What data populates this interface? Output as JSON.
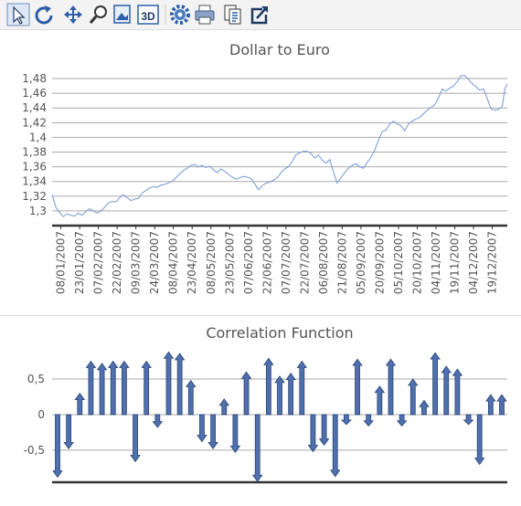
{
  "toolbar": {
    "tools": [
      {
        "name": "pointer-icon",
        "selected": true
      },
      {
        "name": "rotate-icon"
      },
      {
        "name": "move-icon"
      },
      {
        "name": "zoom-icon"
      },
      {
        "name": "image-editor-icon"
      },
      {
        "name": "3d-icon",
        "label": "3D"
      },
      {
        "name": "settings-gear-icon"
      },
      {
        "name": "print-icon"
      },
      {
        "name": "copy-icon"
      },
      {
        "name": "export-icon"
      }
    ]
  },
  "chart_data": [
    {
      "type": "line",
      "title": "Dollar to Euro",
      "ylim": [
        1.28,
        1.49
      ],
      "yticks": [
        "1,3",
        "1,32",
        "1,34",
        "1,36",
        "1,38",
        "1,4",
        "1,42",
        "1,44",
        "1,46",
        "1,48"
      ],
      "ytick_values": [
        1.3,
        1.32,
        1.34,
        1.36,
        1.38,
        1.4,
        1.42,
        1.44,
        1.46,
        1.48
      ],
      "xlim": [
        "2007-01-01",
        "2007-12-31"
      ],
      "xticks": [
        "08/01/2007",
        "23/01/2007",
        "07/02/2007",
        "22/02/2007",
        "09/03/2007",
        "24/03/2007",
        "08/04/2007",
        "23/04/2007",
        "08/05/2007",
        "23/05/2007",
        "07/06/2007",
        "22/06/2007",
        "07/07/2007",
        "22/07/2007",
        "06/08/2007",
        "21/08/2007",
        "05/09/2007",
        "20/09/2007",
        "05/10/2007",
        "20/10/2007",
        "04/11/2007",
        "19/11/2007",
        "04/12/2007",
        "19/12/2007"
      ],
      "xtick_dates": [
        "2007-01-08",
        "2007-01-23",
        "2007-02-07",
        "2007-02-22",
        "2007-03-09",
        "2007-03-24",
        "2007-04-08",
        "2007-04-23",
        "2007-05-08",
        "2007-05-23",
        "2007-06-07",
        "2007-06-22",
        "2007-07-07",
        "2007-07-22",
        "2007-08-06",
        "2007-08-21",
        "2007-09-05",
        "2007-09-20",
        "2007-10-05",
        "2007-10-20",
        "2007-11-04",
        "2007-11-19",
        "2007-12-04",
        "2007-12-19"
      ],
      "grid": true,
      "color": "#7f9fd6",
      "series": [
        {
          "points": [
            [
              "2007-01-01",
              1.322
            ],
            [
              "2007-01-04",
              1.305
            ],
            [
              "2007-01-07",
              1.298
            ],
            [
              "2007-01-10",
              1.292
            ],
            [
              "2007-01-13",
              1.296
            ],
            [
              "2007-01-16",
              1.294
            ],
            [
              "2007-01-19",
              1.293
            ],
            [
              "2007-01-22",
              1.297
            ],
            [
              "2007-01-25",
              1.294
            ],
            [
              "2007-01-28",
              1.299
            ],
            [
              "2007-01-31",
              1.303
            ],
            [
              "2007-02-03",
              1.3
            ],
            [
              "2007-02-06",
              1.297
            ],
            [
              "2007-02-09",
              1.3
            ],
            [
              "2007-02-12",
              1.305
            ],
            [
              "2007-02-15",
              1.311
            ],
            [
              "2007-02-18",
              1.313
            ],
            [
              "2007-02-21",
              1.312
            ],
            [
              "2007-02-24",
              1.318
            ],
            [
              "2007-02-27",
              1.322
            ],
            [
              "2007-03-02",
              1.318
            ],
            [
              "2007-03-05",
              1.314
            ],
            [
              "2007-03-08",
              1.316
            ],
            [
              "2007-03-11",
              1.317
            ],
            [
              "2007-03-14",
              1.324
            ],
            [
              "2007-03-17",
              1.328
            ],
            [
              "2007-03-20",
              1.331
            ],
            [
              "2007-03-23",
              1.333
            ],
            [
              "2007-03-26",
              1.332
            ],
            [
              "2007-03-29",
              1.335
            ],
            [
              "2007-04-01",
              1.336
            ],
            [
              "2007-04-04",
              1.338
            ],
            [
              "2007-04-07",
              1.34
            ],
            [
              "2007-04-10",
              1.345
            ],
            [
              "2007-04-13",
              1.35
            ],
            [
              "2007-04-16",
              1.355
            ],
            [
              "2007-04-19",
              1.358
            ],
            [
              "2007-04-22",
              1.362
            ],
            [
              "2007-04-25",
              1.363
            ],
            [
              "2007-04-28",
              1.36
            ],
            [
              "2007-05-01",
              1.362
            ],
            [
              "2007-05-04",
              1.359
            ],
            [
              "2007-05-07",
              1.361
            ],
            [
              "2007-05-10",
              1.356
            ],
            [
              "2007-05-13",
              1.352
            ],
            [
              "2007-05-16",
              1.357
            ],
            [
              "2007-05-19",
              1.354
            ],
            [
              "2007-05-22",
              1.35
            ],
            [
              "2007-05-25",
              1.346
            ],
            [
              "2007-05-28",
              1.343
            ],
            [
              "2007-05-31",
              1.345
            ],
            [
              "2007-06-03",
              1.347
            ],
            [
              "2007-06-06",
              1.346
            ],
            [
              "2007-06-09",
              1.344
            ],
            [
              "2007-06-12",
              1.337
            ],
            [
              "2007-06-15",
              1.329
            ],
            [
              "2007-06-18",
              1.334
            ],
            [
              "2007-06-21",
              1.338
            ],
            [
              "2007-06-24",
              1.339
            ],
            [
              "2007-06-27",
              1.342
            ],
            [
              "2007-06-30",
              1.345
            ],
            [
              "2007-07-03",
              1.352
            ],
            [
              "2007-07-06",
              1.357
            ],
            [
              "2007-07-09",
              1.36
            ],
            [
              "2007-07-12",
              1.367
            ],
            [
              "2007-07-15",
              1.376
            ],
            [
              "2007-07-18",
              1.379
            ],
            [
              "2007-07-21",
              1.381
            ],
            [
              "2007-07-24",
              1.381
            ],
            [
              "2007-07-27",
              1.378
            ],
            [
              "2007-07-30",
              1.372
            ],
            [
              "2007-08-02",
              1.376
            ],
            [
              "2007-08-05",
              1.369
            ],
            [
              "2007-08-08",
              1.365
            ],
            [
              "2007-08-11",
              1.37
            ],
            [
              "2007-08-14",
              1.353
            ],
            [
              "2007-08-17",
              1.338
            ],
            [
              "2007-08-20",
              1.345
            ],
            [
              "2007-08-23",
              1.352
            ],
            [
              "2007-08-26",
              1.358
            ],
            [
              "2007-08-29",
              1.362
            ],
            [
              "2007-09-01",
              1.364
            ],
            [
              "2007-09-04",
              1.36
            ],
            [
              "2007-09-07",
              1.358
            ],
            [
              "2007-09-10",
              1.366
            ],
            [
              "2007-09-13",
              1.373
            ],
            [
              "2007-09-16",
              1.383
            ],
            [
              "2007-09-19",
              1.396
            ],
            [
              "2007-09-22",
              1.408
            ],
            [
              "2007-09-25",
              1.41
            ],
            [
              "2007-09-28",
              1.418
            ],
            [
              "2007-10-01",
              1.422
            ],
            [
              "2007-10-04",
              1.418
            ],
            [
              "2007-10-07",
              1.416
            ],
            [
              "2007-10-10",
              1.409
            ],
            [
              "2007-10-13",
              1.418
            ],
            [
              "2007-10-16",
              1.422
            ],
            [
              "2007-10-19",
              1.425
            ],
            [
              "2007-10-22",
              1.427
            ],
            [
              "2007-10-25",
              1.432
            ],
            [
              "2007-10-28",
              1.437
            ],
            [
              "2007-10-31",
              1.441
            ],
            [
              "2007-11-03",
              1.444
            ],
            [
              "2007-11-06",
              1.454
            ],
            [
              "2007-11-09",
              1.466
            ],
            [
              "2007-11-12",
              1.463
            ],
            [
              "2007-11-15",
              1.467
            ],
            [
              "2007-11-18",
              1.47
            ],
            [
              "2007-11-21",
              1.476
            ],
            [
              "2007-11-24",
              1.484
            ],
            [
              "2007-11-27",
              1.484
            ],
            [
              "2007-11-30",
              1.479
            ],
            [
              "2007-12-03",
              1.473
            ],
            [
              "2007-12-06",
              1.469
            ],
            [
              "2007-12-09",
              1.464
            ],
            [
              "2007-12-12",
              1.466
            ],
            [
              "2007-12-15",
              1.453
            ],
            [
              "2007-12-18",
              1.439
            ],
            [
              "2007-12-21",
              1.437
            ],
            [
              "2007-12-24",
              1.438
            ],
            [
              "2007-12-27",
              1.442
            ],
            [
              "2007-12-29",
              1.466
            ],
            [
              "2007-12-31",
              1.473
            ]
          ]
        }
      ]
    },
    {
      "type": "bar",
      "title": "Correlation Function",
      "ylim": [
        -0.95,
        1.0
      ],
      "yticks": [
        "0,5",
        "0",
        "-0,5"
      ],
      "ytick_values": [
        0.5,
        0.0,
        -0.5
      ],
      "grid": true,
      "color": "#4f6fad",
      "values": [
        -0.88,
        -0.48,
        0.3,
        0.75,
        0.72,
        0.75,
        0.75,
        -0.66,
        0.75,
        -0.18,
        0.88,
        0.86,
        0.48,
        -0.38,
        -0.48,
        0.22,
        -0.53,
        0.6,
        -0.94,
        0.79,
        0.54,
        0.58,
        0.75,
        -0.52,
        -0.43,
        -0.87,
        -0.14,
        0.78,
        -0.16,
        0.4,
        0.78,
        -0.16,
        0.5,
        0.2,
        0.87,
        0.68,
        0.64,
        -0.14,
        -0.7,
        0.28,
        0.28
      ]
    }
  ]
}
